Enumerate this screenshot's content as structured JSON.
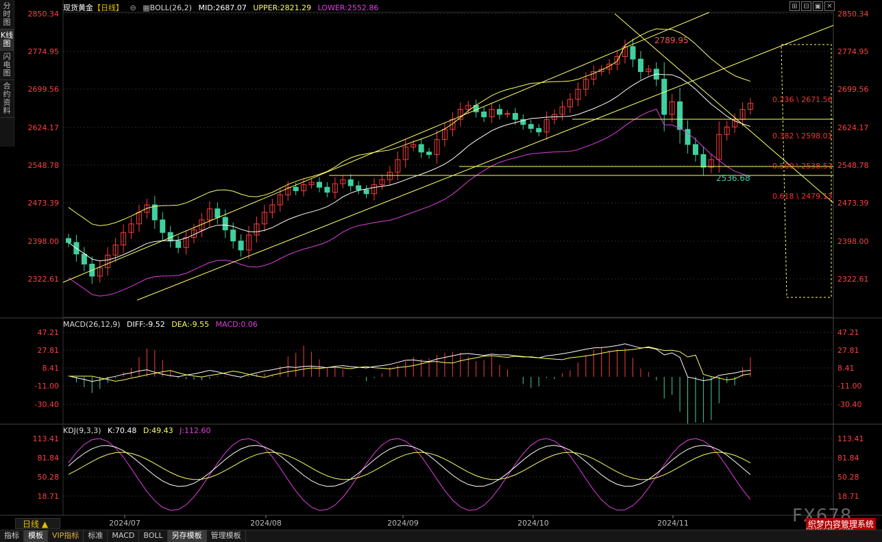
{
  "left_tabs": [
    "分时图",
    "K线图",
    "闪电图",
    "合约资料"
  ],
  "main": {
    "symbol": "现货黄金",
    "period_tag": "【日线】",
    "indicator": "BOLL(26,2)",
    "mid": "MID:2687.07",
    "upper": "UPPER:2821.29",
    "lower": "LOWER:2552.86",
    "price_axis": [
      "2850.34",
      "2774.95",
      "2699.56",
      "2624.17",
      "2548.78",
      "2473.39",
      "2398.00",
      "2322.61"
    ],
    "high_label": "2789.95",
    "low_label": "2536.68",
    "fib_labels": [
      "0.236 \\ 2671.56",
      "0.382 \\ 2598.01",
      "0.500 \\ 2538.57",
      "0.618 \\ 2479.13"
    ]
  },
  "macd": {
    "title": "MACD(26,12,9)",
    "diff": "DIFF:-9.52",
    "dea": "DEA:-9.55",
    "macd": "MACD:0.06",
    "axis": [
      "47.21",
      "27.81",
      "8.41",
      "-11.00",
      "-30.40"
    ]
  },
  "kdj": {
    "title": "KDJ(9,3,3)",
    "k": "K:70.48",
    "d": "D:49.43",
    "j": "J:112.60",
    "axis": [
      "113.41",
      "81.84",
      "50.28",
      "18.71"
    ]
  },
  "dates": [
    "2024/07",
    "2024/08",
    "2024/09",
    "2024/10",
    "2024/11"
  ],
  "period_button": "日线 ▲",
  "bottom_tabs": [
    "指标",
    "模板",
    "VIP指标",
    "标准",
    "MACD",
    "BOLL",
    "另存模板",
    "管理模板"
  ],
  "toolbar_icons": [
    "⊞",
    "⊟",
    "▣",
    "✕"
  ],
  "watermark": "FX678",
  "watermark_sub": "织梦内容管理系统",
  "watermark_url": "DEDECMS.COM",
  "colors": {
    "up": "#ff3b3b",
    "down": "#40d0a0",
    "boll_mid": "#ffffff",
    "boll_up": "#ffff66",
    "boll_low": "#e040e0",
    "fib": "#ffff66",
    "axis_text": "#ff4040"
  }
}
